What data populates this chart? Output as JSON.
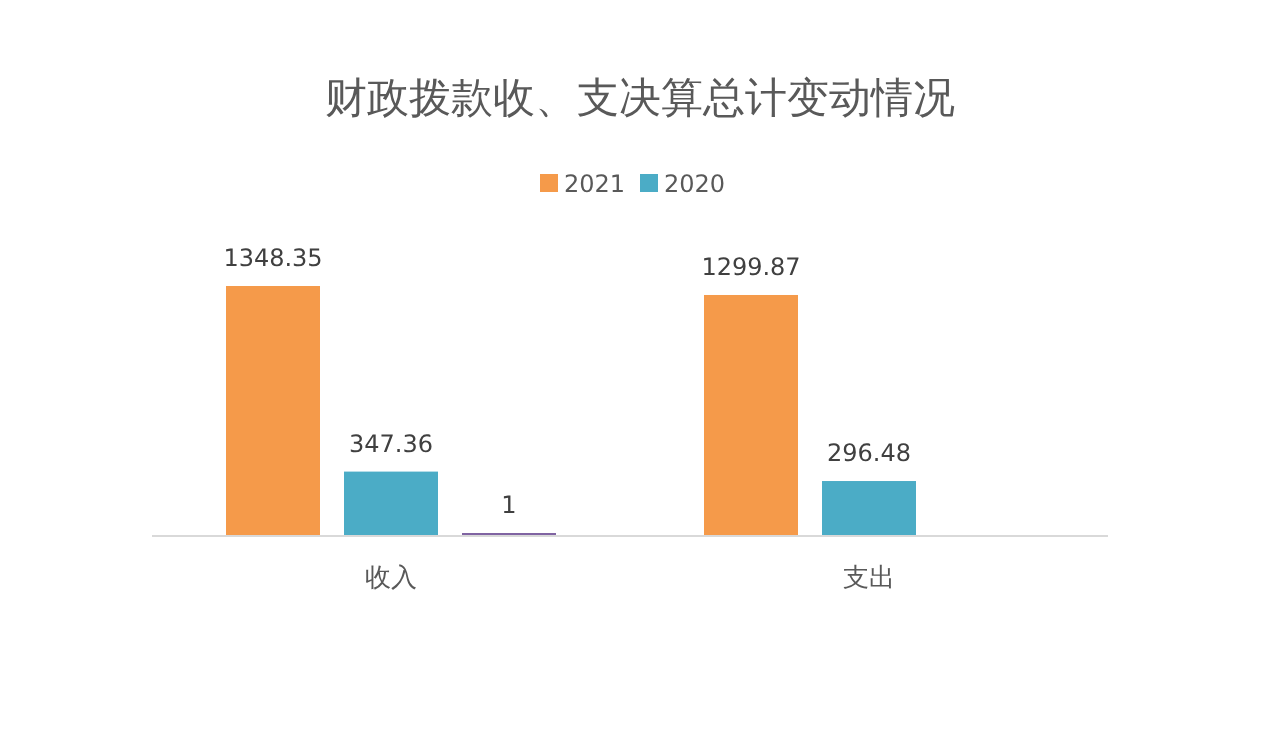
{
  "chart_data": {
    "type": "bar",
    "title": "财政拨款收、支决算总计变动情况",
    "categories": [
      "收入",
      "支出"
    ],
    "series": [
      {
        "name": "2021",
        "color": "#f59a4a",
        "values": [
          1348.35,
          1299.87
        ]
      },
      {
        "name": "2020",
        "color": "#4bacc6",
        "values": [
          347.36,
          296.48
        ]
      },
      {
        "color": "#8064a2",
        "values": [
          1,
          null
        ]
      }
    ],
    "data_labels": true,
    "legend": "top"
  }
}
